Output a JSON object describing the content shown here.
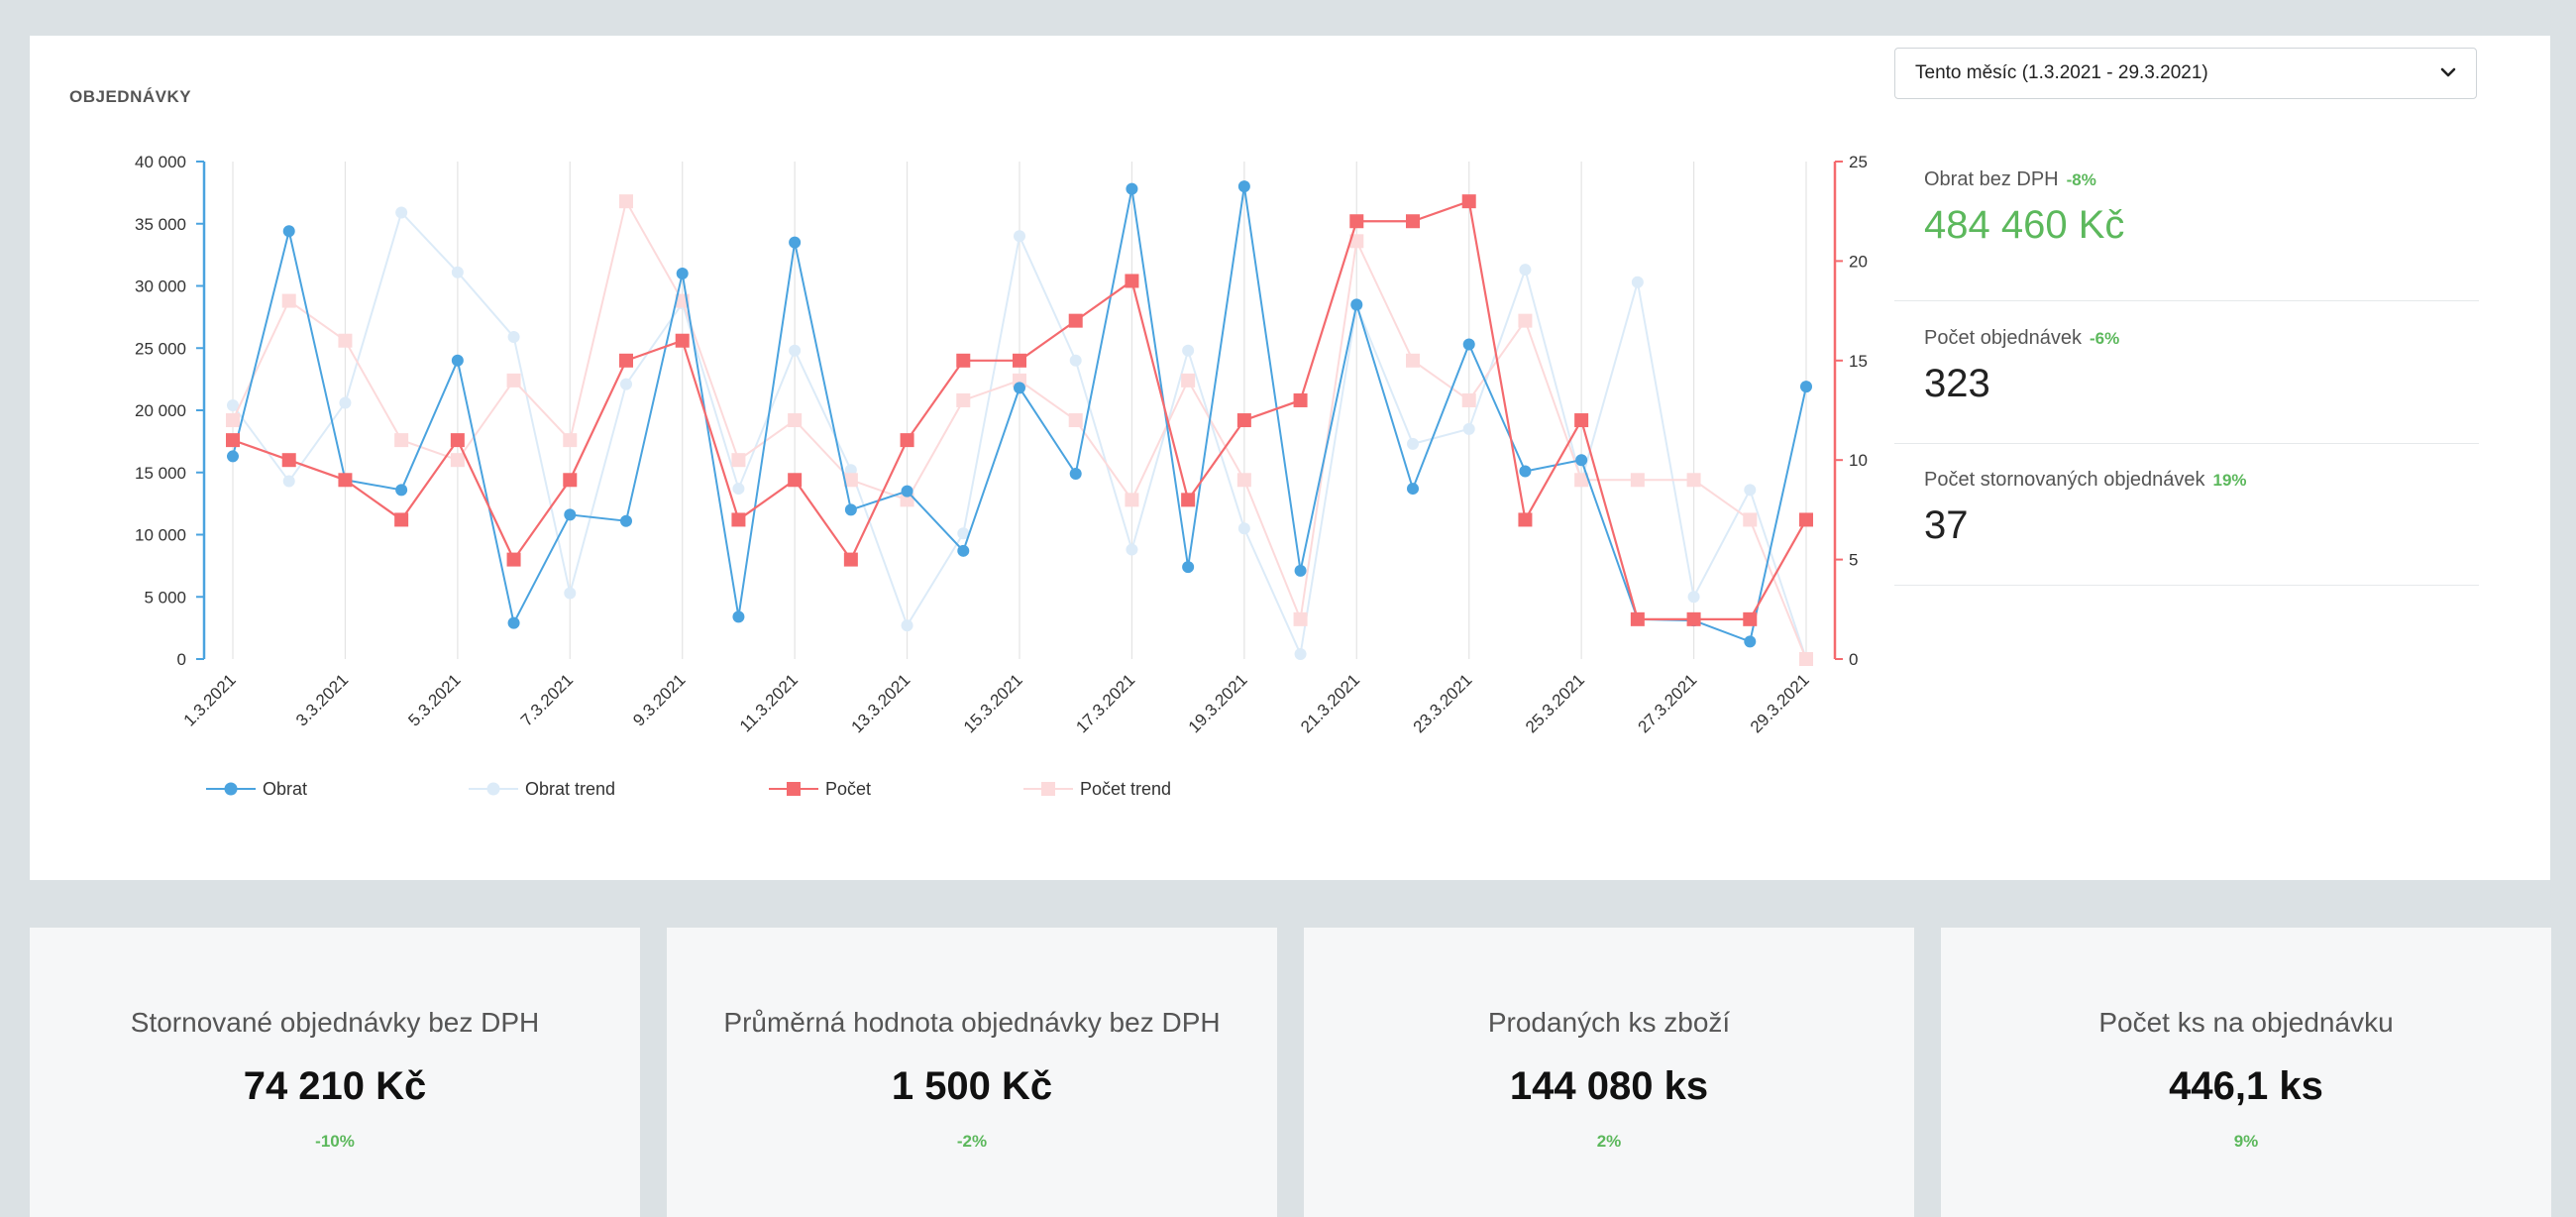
{
  "section_title": "OBJEDNÁVKY",
  "period_select": {
    "value": "Tento měsíc (1.3.2021 - 29.3.2021)",
    "icon": "chevron-down-icon"
  },
  "stats": [
    {
      "label": "Obrat bez DPH",
      "change": "-8%",
      "value": "484 460 Kč"
    },
    {
      "label": "Počet objednávek",
      "change": "-6%",
      "value": "323"
    },
    {
      "label": "Počet stornovaných objednávek",
      "change": "19%",
      "value": "37"
    }
  ],
  "kpis": [
    {
      "label": "Stornované objednávky bez DPH",
      "value": "74 210 Kč",
      "change": "-10%"
    },
    {
      "label": "Průměrná hodnota objednávky bez DPH",
      "value": "1 500 Kč",
      "change": "-2%"
    },
    {
      "label": "Prodaných ks zboží",
      "value": "144 080 ks",
      "change": "2%"
    },
    {
      "label": "Počet ks na objednávku",
      "value": "446,1 ks",
      "change": "9%"
    }
  ],
  "colors": {
    "obrat": "#4aa3df",
    "obrat_trend": "#dcebf8",
    "pocet": "#f46a6e",
    "pocet_trend": "#fcdadb",
    "positive": "#5cb85c"
  },
  "chart_data": {
    "type": "line",
    "x": [
      "1.3.2021",
      "2.3.2021",
      "3.3.2021",
      "4.3.2021",
      "5.3.2021",
      "6.3.2021",
      "7.3.2021",
      "8.3.2021",
      "9.3.2021",
      "10.3.2021",
      "11.3.2021",
      "12.3.2021",
      "13.3.2021",
      "14.3.2021",
      "15.3.2021",
      "16.3.2021",
      "17.3.2021",
      "18.3.2021",
      "19.3.2021",
      "20.3.2021",
      "21.3.2021",
      "22.3.2021",
      "23.3.2021",
      "24.3.2021",
      "25.3.2021",
      "26.3.2021",
      "27.3.2021",
      "28.3.2021",
      "29.3.2021"
    ],
    "x_tick_labels": [
      "1.3.2021",
      "3.3.2021",
      "5.3.2021",
      "7.3.2021",
      "9.3.2021",
      "11.3.2021",
      "13.3.2021",
      "15.3.2021",
      "17.3.2021",
      "19.3.2021",
      "21.3.2021",
      "23.3.2021",
      "25.3.2021",
      "27.3.2021",
      "29.3.2021"
    ],
    "y_left_ticks": [
      "0",
      "5 000",
      "10 000",
      "15 000",
      "20 000",
      "25 000",
      "30 000",
      "35 000",
      "40 000"
    ],
    "y_left_range": [
      0,
      40000
    ],
    "y_right_ticks": [
      "0",
      "5",
      "10",
      "15",
      "20",
      "25"
    ],
    "y_right_range": [
      0,
      25
    ],
    "grid": "vertical",
    "legend_position": "bottom-left",
    "series": [
      {
        "name": "Obrat",
        "axis": "left",
        "marker": "circle",
        "values": [
          16300,
          34400,
          14400,
          13600,
          24000,
          2900,
          11600,
          11100,
          31000,
          3400,
          33500,
          12000,
          13500,
          8700,
          21800,
          14900,
          37800,
          7400,
          38000,
          7100,
          28500,
          13700,
          25300,
          15100,
          16000,
          3200,
          3100,
          1400,
          21900
        ]
      },
      {
        "name": "Obrat trend",
        "axis": "left",
        "marker": "circle",
        "values": [
          20400,
          14300,
          20600,
          35900,
          31100,
          25900,
          5300,
          22100,
          28600,
          13700,
          24800,
          15200,
          2700,
          10100,
          34000,
          24000,
          8800,
          24800,
          10500,
          400,
          28400,
          17300,
          18500,
          31300,
          14300,
          30300,
          5000,
          13600,
          0
        ]
      },
      {
        "name": "Počet",
        "axis": "right",
        "marker": "square",
        "values": [
          11,
          10,
          9,
          7,
          11,
          5,
          9,
          15,
          16,
          7,
          9,
          5,
          11,
          15,
          15,
          17,
          19,
          8,
          12,
          13,
          22,
          22,
          23,
          7,
          12,
          2,
          2,
          2,
          7
        ]
      },
      {
        "name": "Počet trend",
        "axis": "right",
        "marker": "square",
        "values": [
          12,
          18,
          16,
          11,
          10,
          14,
          11,
          23,
          18,
          10,
          12,
          9,
          8,
          13,
          14,
          12,
          8,
          14,
          9,
          2,
          21,
          15,
          13,
          17,
          9,
          9,
          9,
          7,
          0
        ]
      }
    ]
  }
}
